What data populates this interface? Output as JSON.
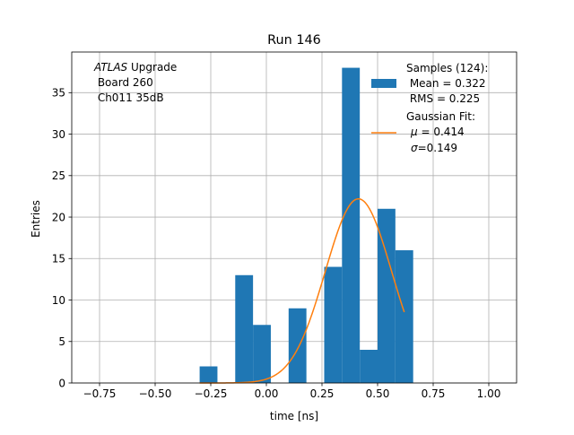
{
  "chart_data": {
    "type": "bar",
    "title": "Run 146",
    "xlabel": "time [ns]",
    "ylabel": "Entries",
    "xlim": [
      -0.875,
      1.125
    ],
    "ylim": [
      0,
      39.9
    ],
    "grid": true,
    "legend_position": "top-right",
    "xticks": [
      -0.75,
      -0.5,
      -0.25,
      0.0,
      0.25,
      0.5,
      0.75,
      1.0
    ],
    "xtick_labels": [
      "−0.75",
      "−0.50",
      "−0.25",
      "0.00",
      "0.25",
      "0.50",
      "0.75",
      "1.00"
    ],
    "yticks": [
      0,
      5,
      10,
      15,
      20,
      25,
      30,
      35
    ],
    "ytick_labels": [
      "0",
      "5",
      "10",
      "15",
      "20",
      "25",
      "30",
      "35"
    ],
    "histogram": {
      "bin_edges": [
        -0.3,
        -0.22,
        -0.14,
        -0.06,
        0.02,
        0.1,
        0.18,
        0.26,
        0.34,
        0.42,
        0.5,
        0.58,
        0.66
      ],
      "counts": [
        2,
        0,
        13,
        7,
        0,
        9,
        0,
        14,
        38,
        4,
        21,
        16
      ],
      "color": "#1f77b4"
    },
    "fit": {
      "mu": 0.414,
      "sigma": 0.149,
      "amplitude": 22.2,
      "x_range": [
        -0.3,
        0.62
      ],
      "color": "#ff7f0e"
    },
    "annotation": {
      "italic_part": "ATLAS",
      "rest": " Upgrade",
      "line2": " Board 260",
      "line3": " Ch011 35dB"
    },
    "legend": {
      "hist_lines": [
        "Samples (124):",
        " Mean = 0.322",
        " RMS = 0.225"
      ],
      "fit_line1": "Gaussian Fit:",
      "fit_mu_sym": "μ",
      "fit_mu_rest": " = 0.414",
      "fit_sigma_sym": "σ",
      "fit_sigma_rest": "=0.149"
    }
  }
}
